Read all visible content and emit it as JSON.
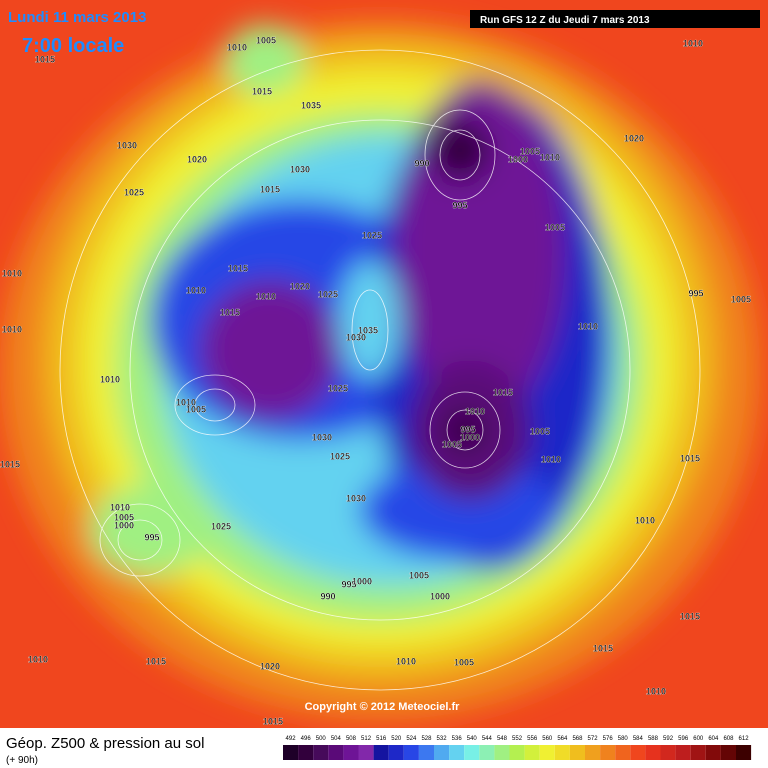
{
  "header": {
    "date": "Lundi 11 mars 2013",
    "time": "7:00 locale",
    "run": "Run GFS 12 Z du Jeudi 7 mars 2013"
  },
  "copyright": "Copyright © 2012 Meteociel.fr",
  "footer": {
    "title": "Géop. Z500 & pression au sol",
    "subtitle": "(+ 90h)"
  },
  "scale": {
    "values": [
      492,
      496,
      500,
      504,
      508,
      512,
      516,
      520,
      524,
      528,
      532,
      536,
      540,
      544,
      548,
      552,
      556,
      560,
      564,
      568,
      572,
      576,
      580,
      584,
      588,
      592,
      596,
      600,
      604,
      608,
      612
    ],
    "colors": [
      "#1e0028",
      "#32003c",
      "#460a5a",
      "#5a0a78",
      "#6e1496",
      "#8228aa",
      "#1414a0",
      "#1e28c8",
      "#2846e6",
      "#3c78f0",
      "#50aaf0",
      "#64d2f0",
      "#78f0e6",
      "#8cf0b4",
      "#a0f082",
      "#b4f050",
      "#d2f03c",
      "#f0f032",
      "#f0dc28",
      "#f0be1e",
      "#f0a01e",
      "#f0821e",
      "#f0641e",
      "#f0461e",
      "#e6321e",
      "#d2281e",
      "#be1e1e",
      "#a01414",
      "#820a0a",
      "#640505",
      "#3c0000"
    ]
  },
  "isobars": [
    "1010",
    "1005",
    "1015",
    "1015",
    "1035",
    "1030",
    "1020",
    "1030",
    "1025",
    "1015",
    "1025",
    "1010",
    "1015",
    "1010",
    "1010",
    "1020",
    "1025",
    "1015",
    "1010",
    "1035",
    "1030",
    "1025",
    "1010",
    "1010",
    "1005",
    "1030",
    "1025",
    "1030",
    "1015",
    "1010",
    "1005",
    "1000",
    "995",
    "1025",
    "990",
    "995",
    "1000",
    "1005",
    "1000",
    "1010",
    "1005",
    "1015",
    "1020",
    "1010",
    "1015",
    "1010",
    "1020",
    "995",
    "1000",
    "1005",
    "1010",
    "990",
    "1005",
    "995",
    "1005",
    "1010",
    "1015",
    "1010",
    "995",
    "1000",
    "1005",
    "1005",
    "1010",
    "1015",
    "1010",
    "1015",
    "1015",
    "1010"
  ]
}
